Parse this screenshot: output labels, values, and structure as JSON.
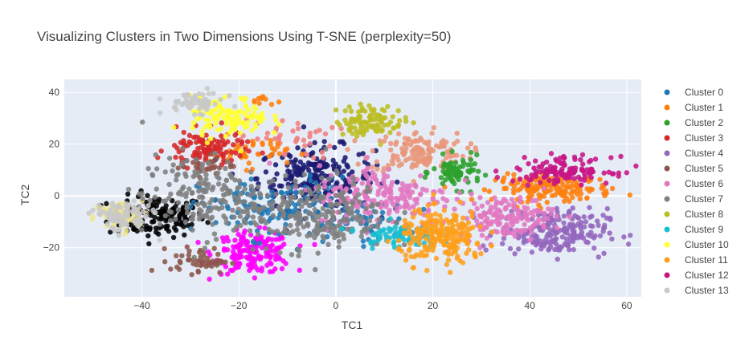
{
  "chart_data": {
    "type": "scatter",
    "title": "Visualizing Clusters in Two Dimensions Using T-SNE (perplexity=50)",
    "xlabel": "TC1",
    "ylabel": "TC2",
    "xlim": [
      -56,
      63
    ],
    "ylim": [
      -39,
      45
    ],
    "x_ticks": [
      -40,
      -20,
      0,
      20,
      40,
      60
    ],
    "y_ticks": [
      -20,
      0,
      20,
      40
    ],
    "grid": true,
    "legend_position": "right",
    "series": [
      {
        "name": "Cluster 0",
        "color": "#1f77b4",
        "blobs": [
          {
            "cx": -12,
            "cy": -5,
            "sx": 8,
            "sy": 6,
            "n": 140
          },
          {
            "cx": 5,
            "cy": -10,
            "sx": 5,
            "sy": 4,
            "n": 40
          }
        ]
      },
      {
        "name": "Cluster 1",
        "color": "#ff7f0e",
        "blobs": [
          {
            "cx": 45,
            "cy": 3,
            "sx": 6,
            "sy": 2.5,
            "n": 170
          },
          {
            "cx": -18,
            "cy": 17,
            "sx": 4,
            "sy": 3,
            "n": 40
          },
          {
            "cx": -15,
            "cy": 37,
            "sx": 1.2,
            "sy": 1,
            "n": 10
          }
        ]
      },
      {
        "name": "Cluster 2",
        "color": "#2ca02c",
        "blobs": [
          {
            "cx": 25,
            "cy": 9,
            "sx": 2.5,
            "sy": 3,
            "n": 75
          }
        ]
      },
      {
        "name": "Cluster 3",
        "color": "#d62728",
        "blobs": [
          {
            "cx": -27,
            "cy": 18,
            "sx": 4,
            "sy": 3.5,
            "n": 110
          }
        ]
      },
      {
        "name": "Cluster 4",
        "color": "#9467bd",
        "blobs": [
          {
            "cx": 45,
            "cy": -14,
            "sx": 5.5,
            "sy": 4.5,
            "n": 210
          }
        ]
      },
      {
        "name": "Cluster 5",
        "color": "#8c564b",
        "blobs": [
          {
            "cx": -28,
            "cy": -25,
            "sx": 3,
            "sy": 2.5,
            "n": 50
          },
          {
            "cx": -27,
            "cy": 12,
            "sx": 3,
            "sy": 2,
            "n": 25
          }
        ]
      },
      {
        "name": "Cluster 6",
        "color": "#e377c2",
        "blobs": [
          {
            "cx": 10,
            "cy": 0,
            "sx": 7,
            "sy": 6,
            "n": 200
          },
          {
            "cx": 35,
            "cy": -8,
            "sx": 5,
            "sy": 4,
            "n": 150
          }
        ]
      },
      {
        "name": "Cluster 7",
        "color": "#7f7f7f",
        "blobs": [
          {
            "cx": -28,
            "cy": 0,
            "sx": 6,
            "sy": 8,
            "n": 170
          },
          {
            "cx": -5,
            "cy": -7,
            "sx": 8,
            "sy": 7,
            "n": 250
          }
        ]
      },
      {
        "name": "Cluster 8",
        "color": "#bcbd22",
        "blobs": [
          {
            "cx": 7,
            "cy": 29,
            "sx": 3.5,
            "sy": 3,
            "n": 100
          }
        ]
      },
      {
        "name": "Cluster 9",
        "color": "#17becf",
        "blobs": [
          {
            "cx": 13,
            "cy": -15,
            "sx": 4,
            "sy": 2.5,
            "n": 80
          }
        ]
      },
      {
        "name": "Cluster 10",
        "color": "#ffff33",
        "blobs": [
          {
            "cx": -22,
            "cy": 30,
            "sx": 4,
            "sy": 4,
            "n": 120
          }
        ]
      },
      {
        "name": "Cluster 11",
        "color": "#ff9f1c",
        "blobs": [
          {
            "cx": 22,
            "cy": -16,
            "sx": 4.5,
            "sy": 5,
            "n": 230
          }
        ]
      },
      {
        "name": "Cluster 12",
        "color": "#c71585",
        "blobs": [
          {
            "cx": 47,
            "cy": 10,
            "sx": 5,
            "sy": 2.5,
            "n": 130
          }
        ]
      },
      {
        "name": "Cluster 13",
        "color": "#c8c8c8",
        "blobs": [
          {
            "cx": -29,
            "cy": 36,
            "sx": 3,
            "sy": 2,
            "n": 60
          },
          {
            "cx": -44,
            "cy": -8,
            "sx": 3,
            "sy": 3,
            "n": 90
          }
        ]
      }
    ],
    "extra_groups": [
      {
        "color": "#000000",
        "blobs": [
          {
            "cx": -37,
            "cy": -8,
            "sx": 5,
            "sy": 4,
            "n": 150
          }
        ]
      },
      {
        "color": "#191970",
        "blobs": [
          {
            "cx": -4,
            "cy": 7,
            "sx": 6,
            "sy": 6,
            "n": 240
          }
        ]
      },
      {
        "color": "#ff00ff",
        "blobs": [
          {
            "cx": -17,
            "cy": -22,
            "sx": 4,
            "sy": 4,
            "n": 170
          }
        ]
      },
      {
        "color": "#f0e68c",
        "blobs": [
          {
            "cx": -45,
            "cy": -8,
            "sx": 2.5,
            "sy": 3,
            "n": 70
          }
        ]
      },
      {
        "color": "#e9967a",
        "blobs": [
          {
            "cx": 17,
            "cy": 17,
            "sx": 5,
            "sy": 4,
            "n": 140
          }
        ]
      },
      {
        "color": "#f08080",
        "blobs": [
          {
            "cx": -10,
            "cy": 22,
            "sx": 5,
            "sy": 4,
            "n": 40
          }
        ]
      }
    ]
  }
}
